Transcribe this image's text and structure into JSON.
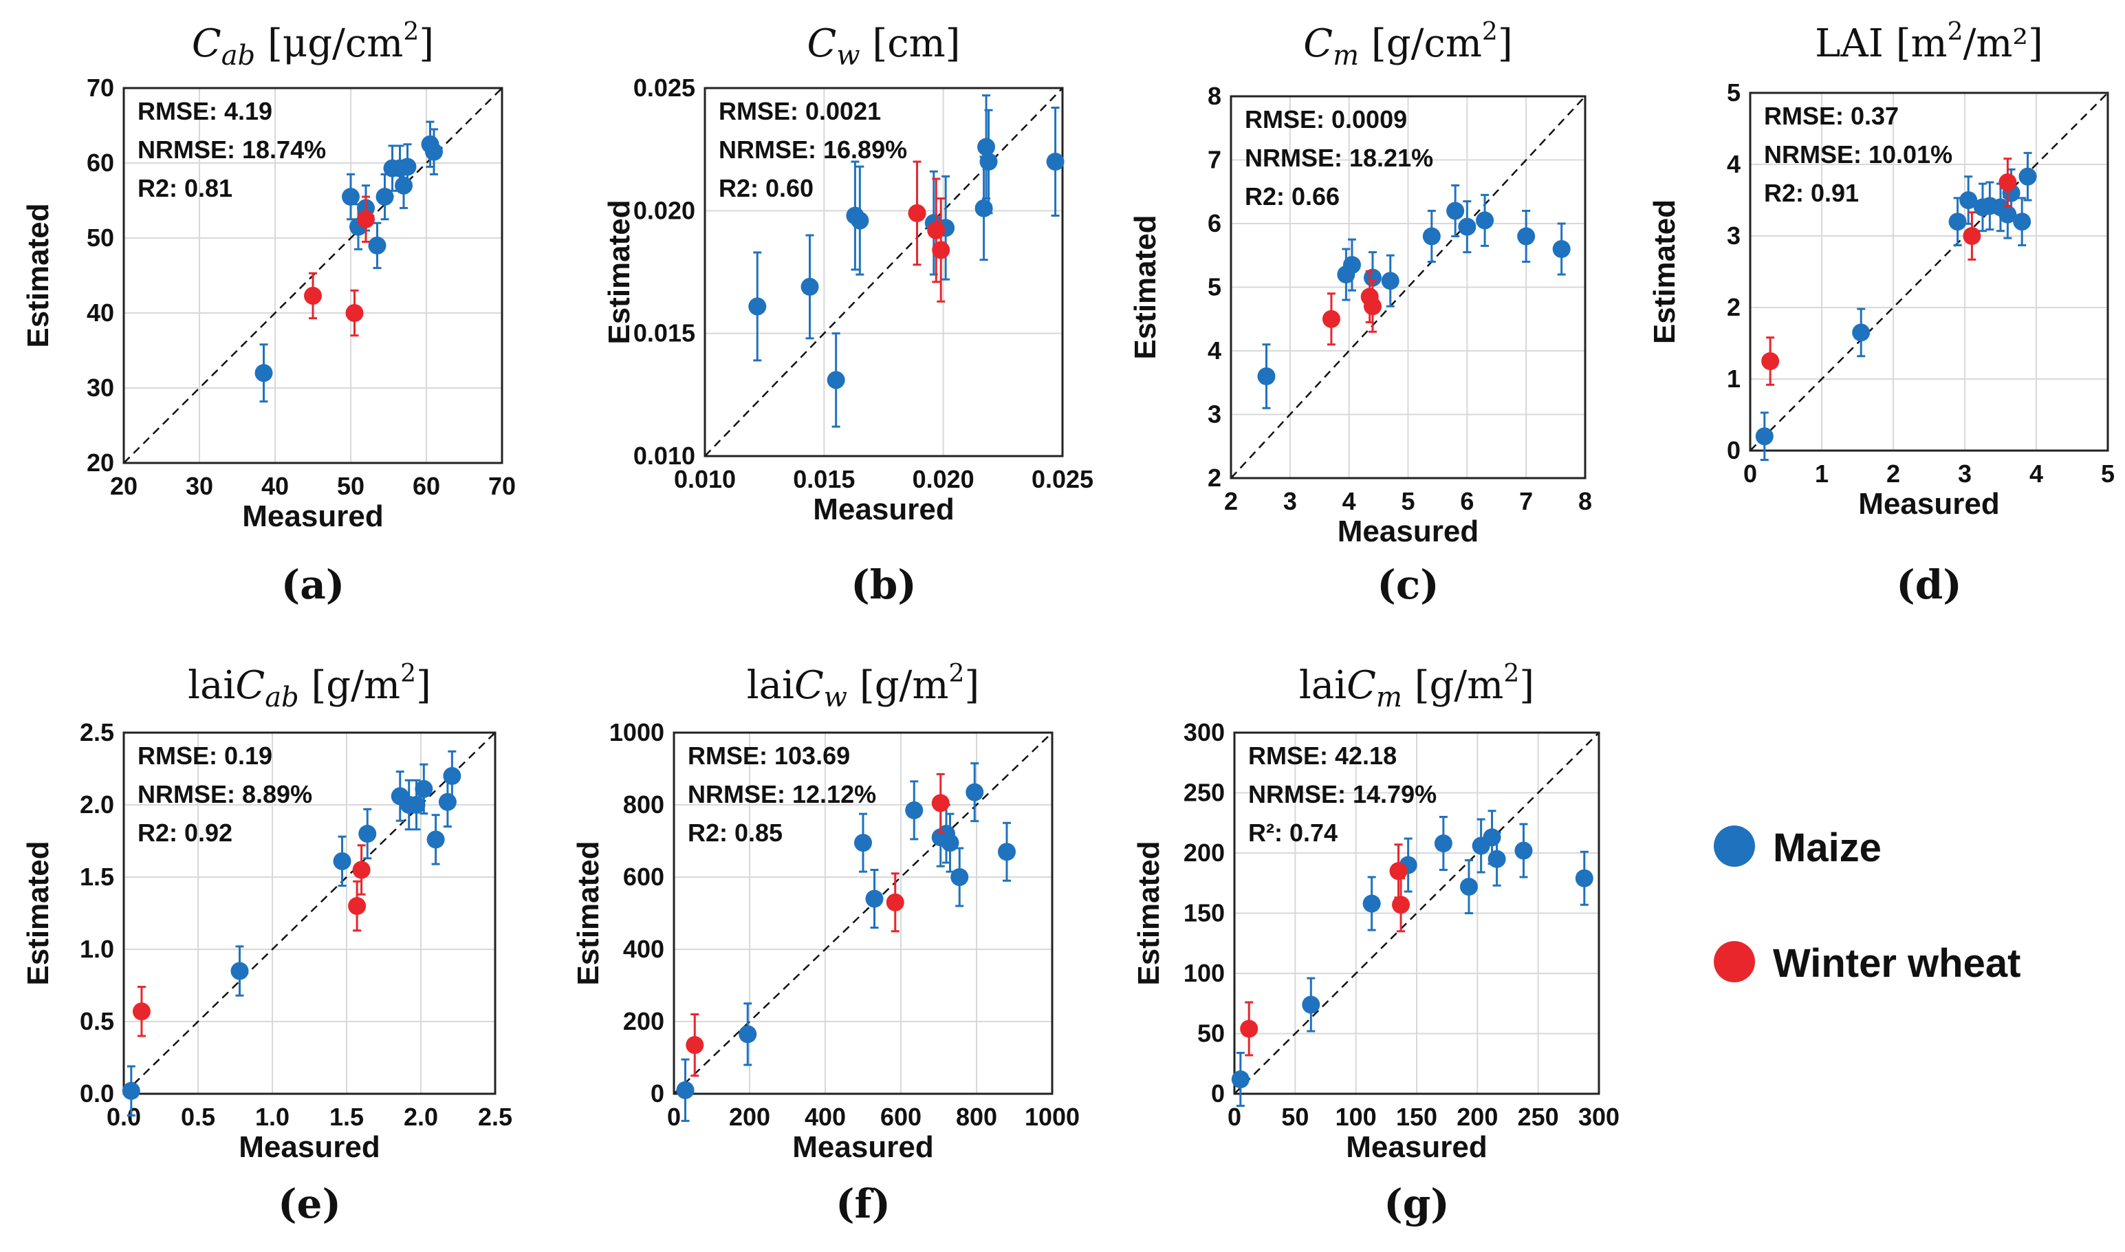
{
  "colors": {
    "maize": "#1f72be",
    "wheat": "#e8262c",
    "grid": "#d8d8d8",
    "axis": "#222222"
  },
  "legend": {
    "items": [
      {
        "label": "Maize",
        "color": "#1f72be"
      },
      {
        "label": "Winter wheat",
        "color": "#e8262c"
      }
    ]
  },
  "chart_data": [
    {
      "type": "scatter",
      "panel_label": "(a)",
      "title": {
        "base": "C",
        "sub": "ab",
        "post": " [μg/cm",
        "sup": "2",
        "end": "]"
      },
      "xlabel": "Measured",
      "ylabel": "Estimated",
      "xlim": [
        20,
        70
      ],
      "ylim": [
        20,
        70
      ],
      "xticks": [
        "20",
        "30",
        "40",
        "50",
        "60",
        "70"
      ],
      "yticks": [
        "20",
        "30",
        "40",
        "50",
        "60",
        "70"
      ],
      "stats": {
        "rmse": "RMSE: 4.19",
        "nrmse": "NRMSE: 18.74%",
        "r2": "R2: 0.81"
      },
      "series": [
        {
          "name": "Maize",
          "points": [
            {
              "x": 38.5,
              "y": 32,
              "err": 3.8
            },
            {
              "x": 50,
              "y": 55.5,
              "err": 3
            },
            {
              "x": 51,
              "y": 51.5,
              "err": 3
            },
            {
              "x": 52,
              "y": 54,
              "err": 3
            },
            {
              "x": 53.5,
              "y": 49,
              "err": 3
            },
            {
              "x": 54.5,
              "y": 55.5,
              "err": 3
            },
            {
              "x": 55.5,
              "y": 59.3,
              "err": 3
            },
            {
              "x": 56.5,
              "y": 59.3,
              "err": 3
            },
            {
              "x": 57,
              "y": 57,
              "err": 3
            },
            {
              "x": 57.5,
              "y": 59.5,
              "err": 3
            },
            {
              "x": 60.5,
              "y": 62.5,
              "err": 3
            },
            {
              "x": 61,
              "y": 61.5,
              "err": 3
            }
          ]
        },
        {
          "name": "Winter wheat",
          "points": [
            {
              "x": 45,
              "y": 42.3,
              "err": 3
            },
            {
              "x": 50.5,
              "y": 40,
              "err": 3
            },
            {
              "x": 52,
              "y": 52.5,
              "err": 3
            }
          ]
        }
      ]
    },
    {
      "type": "scatter",
      "panel_label": "(b)",
      "title": {
        "base": "C",
        "sub": "w",
        "post": " [cm]",
        "sup": "",
        "end": ""
      },
      "xlabel": "Measured",
      "ylabel": "Estimated",
      "xlim": [
        0.01,
        0.025
      ],
      "ylim": [
        0.01,
        0.025
      ],
      "xticks": [
        "0.010",
        "0.015",
        "0.020",
        "0.025"
      ],
      "yticks": [
        "0.010",
        "0.015",
        "0.020",
        "0.025"
      ],
      "stats": {
        "rmse": "RMSE: 0.0021",
        "nrmse": "NRMSE: 16.89%",
        "r2": "R2: 0.60"
      },
      "series": [
        {
          "name": "Maize",
          "points": [
            {
              "x": 0.0122,
              "y": 0.0161,
              "err": 0.0022
            },
            {
              "x": 0.0144,
              "y": 0.0169,
              "err": 0.0021
            },
            {
              "x": 0.0155,
              "y": 0.0131,
              "err": 0.0019
            },
            {
              "x": 0.0163,
              "y": 0.0198,
              "err": 0.0022
            },
            {
              "x": 0.0165,
              "y": 0.0196,
              "err": 0.0022
            },
            {
              "x": 0.0196,
              "y": 0.0195,
              "err": 0.0021
            },
            {
              "x": 0.0201,
              "y": 0.0193,
              "err": 0.0021
            },
            {
              "x": 0.0217,
              "y": 0.0201,
              "err": 0.0021
            },
            {
              "x": 0.0218,
              "y": 0.0226,
              "err": 0.0021
            },
            {
              "x": 0.0219,
              "y": 0.022,
              "err": 0.0021
            },
            {
              "x": 0.0247,
              "y": 0.022,
              "err": 0.0022
            }
          ]
        },
        {
          "name": "Winter wheat",
          "points": [
            {
              "x": 0.0189,
              "y": 0.0199,
              "err": 0.0021
            },
            {
              "x": 0.0197,
              "y": 0.0192,
              "err": 0.0021
            },
            {
              "x": 0.0199,
              "y": 0.0184,
              "err": 0.0021
            }
          ]
        }
      ]
    },
    {
      "type": "scatter",
      "panel_label": "(c)",
      "title": {
        "base": "C",
        "sub": "m",
        "post": " [g/cm",
        "sup": "2",
        "end": "]"
      },
      "xlabel": "Measured",
      "ylabel": "Estimated",
      "xlim": [
        2,
        8
      ],
      "ylim": [
        2,
        8
      ],
      "xticks": [
        "2",
        "3",
        "4",
        "5",
        "6",
        "7",
        "8"
      ],
      "yticks": [
        "2",
        "3",
        "4",
        "5",
        "6",
        "7",
        "8"
      ],
      "stats": {
        "rmse": "RMSE: 0.0009",
        "nrmse": "NRMSE: 18.21%",
        "r2": "R2: 0.66"
      },
      "series": [
        {
          "name": "Maize",
          "points": [
            {
              "x": 2.6,
              "y": 3.6,
              "err": 0.5
            },
            {
              "x": 3.95,
              "y": 5.2,
              "err": 0.4
            },
            {
              "x": 4.05,
              "y": 5.35,
              "err": 0.4
            },
            {
              "x": 4.4,
              "y": 5.15,
              "err": 0.4
            },
            {
              "x": 4.7,
              "y": 5.1,
              "err": 0.4
            },
            {
              "x": 5.4,
              "y": 5.8,
              "err": 0.4
            },
            {
              "x": 5.8,
              "y": 6.2,
              "err": 0.4
            },
            {
              "x": 6.0,
              "y": 5.95,
              "err": 0.4
            },
            {
              "x": 6.3,
              "y": 6.05,
              "err": 0.4
            },
            {
              "x": 7.0,
              "y": 5.8,
              "err": 0.4
            },
            {
              "x": 7.6,
              "y": 5.6,
              "err": 0.4
            }
          ]
        },
        {
          "name": "Winter wheat",
          "points": [
            {
              "x": 3.7,
              "y": 4.5,
              "err": 0.4
            },
            {
              "x": 4.35,
              "y": 4.85,
              "err": 0.4
            },
            {
              "x": 4.4,
              "y": 4.7,
              "err": 0.4
            }
          ]
        }
      ]
    },
    {
      "type": "scatter",
      "panel_label": "(d)",
      "title": {
        "base": "LAI [m",
        "sub": "",
        "post": "",
        "sup": "2",
        "end": "/m²]"
      },
      "xlabel": "Measured",
      "ylabel": "Estimated",
      "xlim": [
        0,
        5
      ],
      "ylim": [
        0,
        5
      ],
      "xticks": [
        "0",
        "1",
        "2",
        "3",
        "4",
        "5"
      ],
      "yticks": [
        "0",
        "1",
        "2",
        "3",
        "4",
        "5"
      ],
      "stats": {
        "rmse": "RMSE: 0.37",
        "nrmse": "NRMSE: 10.01%",
        "r2": "R2: 0.91"
      },
      "series": [
        {
          "name": "Maize",
          "points": [
            {
              "x": 0.2,
              "y": 0.2,
              "err": 0.33
            },
            {
              "x": 1.55,
              "y": 1.65,
              "err": 0.33
            },
            {
              "x": 2.9,
              "y": 3.2,
              "err": 0.33
            },
            {
              "x": 3.05,
              "y": 3.5,
              "err": 0.33
            },
            {
              "x": 3.25,
              "y": 3.4,
              "err": 0.33
            },
            {
              "x": 3.35,
              "y": 3.42,
              "err": 0.33
            },
            {
              "x": 3.5,
              "y": 3.4,
              "err": 0.33
            },
            {
              "x": 3.6,
              "y": 3.3,
              "err": 0.33
            },
            {
              "x": 3.65,
              "y": 3.6,
              "err": 0.33
            },
            {
              "x": 3.8,
              "y": 3.2,
              "err": 0.33
            },
            {
              "x": 3.88,
              "y": 3.83,
              "err": 0.33
            }
          ]
        },
        {
          "name": "Winter wheat",
          "points": [
            {
              "x": 0.28,
              "y": 1.25,
              "err": 0.33
            },
            {
              "x": 3.1,
              "y": 3.0,
              "err": 0.33
            },
            {
              "x": 3.6,
              "y": 3.75,
              "err": 0.33
            }
          ]
        }
      ]
    },
    {
      "type": "scatter",
      "panel_label": "(e)",
      "title": {
        "base": "lai",
        "italic": "C",
        "sub": "ab",
        "post": " [g/m",
        "sup": "2",
        "end": "]"
      },
      "xlabel": "Measured",
      "ylabel": "Estimated",
      "xlim": [
        0,
        2.5
      ],
      "ylim": [
        0,
        2.5
      ],
      "xticks": [
        "0.0",
        "0.5",
        "1.0",
        "1.5",
        "2.0",
        "2.5"
      ],
      "yticks": [
        "0.0",
        "0.5",
        "1.0",
        "1.5",
        "2.0",
        "2.5"
      ],
      "stats": {
        "rmse": "RMSE: 0.19",
        "nrmse": "NRMSE: 8.89%",
        "r2": "R2: 0.92"
      },
      "series": [
        {
          "name": "Maize",
          "points": [
            {
              "x": 0.05,
              "y": 0.02,
              "err": 0.17
            },
            {
              "x": 0.78,
              "y": 0.85,
              "err": 0.17
            },
            {
              "x": 1.47,
              "y": 1.61,
              "err": 0.17
            },
            {
              "x": 1.64,
              "y": 1.8,
              "err": 0.17
            },
            {
              "x": 1.86,
              "y": 2.06,
              "err": 0.17
            },
            {
              "x": 1.92,
              "y": 2.0,
              "err": 0.17
            },
            {
              "x": 1.97,
              "y": 2.0,
              "err": 0.17
            },
            {
              "x": 2.02,
              "y": 2.11,
              "err": 0.17
            },
            {
              "x": 2.1,
              "y": 1.76,
              "err": 0.17
            },
            {
              "x": 2.18,
              "y": 2.02,
              "err": 0.17
            },
            {
              "x": 2.21,
              "y": 2.2,
              "err": 0.17
            }
          ]
        },
        {
          "name": "Winter wheat",
          "points": [
            {
              "x": 0.12,
              "y": 0.57,
              "err": 0.17
            },
            {
              "x": 1.57,
              "y": 1.3,
              "err": 0.17
            },
            {
              "x": 1.6,
              "y": 1.55,
              "err": 0.17
            }
          ]
        }
      ]
    },
    {
      "type": "scatter",
      "panel_label": "(f)",
      "title": {
        "base": "lai",
        "italic": "C",
        "sub": "w",
        "post": " [g/m",
        "sup": "2",
        "end": "]"
      },
      "xlabel": "Measured",
      "ylabel": "Estimated",
      "xlim": [
        0,
        1000
      ],
      "ylim": [
        0,
        1000
      ],
      "xticks": [
        "0",
        "200",
        "400",
        "600",
        "800",
        "1000"
      ],
      "yticks": [
        "0",
        "200",
        "400",
        "600",
        "800",
        "1000"
      ],
      "stats": {
        "rmse": "RMSE: 103.69",
        "nrmse": "NRMSE: 12.12%",
        "r2": "R2: 0.85"
      },
      "series": [
        {
          "name": "Maize",
          "points": [
            {
              "x": 30,
              "y": 10,
              "err": 85
            },
            {
              "x": 195,
              "y": 165,
              "err": 85
            },
            {
              "x": 500,
              "y": 695,
              "err": 80
            },
            {
              "x": 530,
              "y": 540,
              "err": 80
            },
            {
              "x": 635,
              "y": 785,
              "err": 80
            },
            {
              "x": 705,
              "y": 710,
              "err": 80
            },
            {
              "x": 720,
              "y": 720,
              "err": 80
            },
            {
              "x": 730,
              "y": 695,
              "err": 80
            },
            {
              "x": 755,
              "y": 600,
              "err": 80
            },
            {
              "x": 795,
              "y": 835,
              "err": 80
            },
            {
              "x": 880,
              "y": 670,
              "err": 80
            }
          ]
        },
        {
          "name": "Winter wheat",
          "points": [
            {
              "x": 55,
              "y": 135,
              "err": 85
            },
            {
              "x": 585,
              "y": 530,
              "err": 80
            },
            {
              "x": 705,
              "y": 805,
              "err": 80
            }
          ]
        }
      ]
    },
    {
      "type": "scatter",
      "panel_label": "(g)",
      "title": {
        "base": "lai",
        "italic": "C",
        "sub": "m",
        "post": " [g/m",
        "sup": "2",
        "end": "]"
      },
      "xlabel": "Measured",
      "ylabel": "Estimated",
      "xlim": [
        0,
        300
      ],
      "ylim": [
        0,
        300
      ],
      "xticks": [
        "0",
        "50",
        "100",
        "150",
        "200",
        "250",
        "300"
      ],
      "yticks": [
        "0",
        "50",
        "100",
        "150",
        "200",
        "250",
        "300"
      ],
      "stats": {
        "rmse": "RMSE: 42.18",
        "nrmse": "NRMSE: 14.79%",
        "r2": "R²: 0.74"
      },
      "series": [
        {
          "name": "Maize",
          "points": [
            {
              "x": 5,
              "y": 12,
              "err": 22
            },
            {
              "x": 63,
              "y": 74,
              "err": 22
            },
            {
              "x": 113,
              "y": 158,
              "err": 22
            },
            {
              "x": 143,
              "y": 190,
              "err": 22
            },
            {
              "x": 172,
              "y": 208,
              "err": 22
            },
            {
              "x": 193,
              "y": 172,
              "err": 22
            },
            {
              "x": 203,
              "y": 206,
              "err": 22
            },
            {
              "x": 212,
              "y": 213,
              "err": 22
            },
            {
              "x": 216,
              "y": 195,
              "err": 22
            },
            {
              "x": 238,
              "y": 202,
              "err": 22
            },
            {
              "x": 288,
              "y": 179,
              "err": 22
            }
          ]
        },
        {
          "name": "Winter wheat",
          "points": [
            {
              "x": 12,
              "y": 54,
              "err": 22
            },
            {
              "x": 135,
              "y": 185,
              "err": 22
            },
            {
              "x": 137,
              "y": 157,
              "err": 22
            }
          ]
        }
      ]
    }
  ]
}
